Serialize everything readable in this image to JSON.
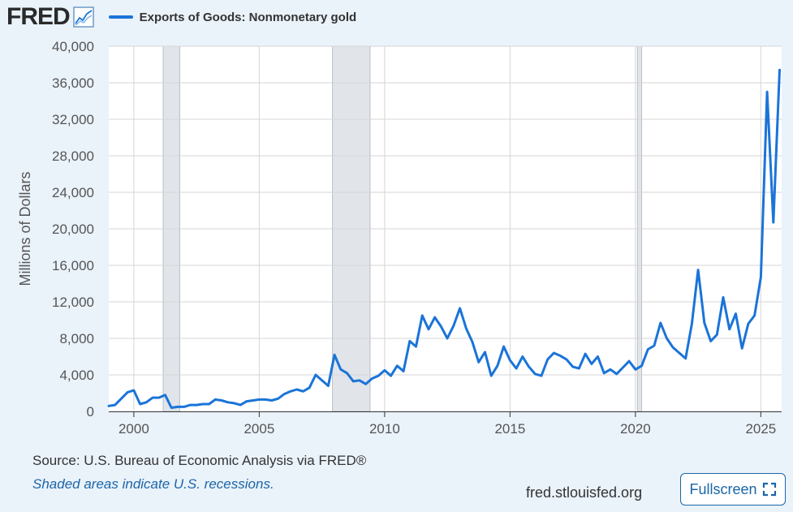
{
  "brand": "FRED",
  "colors": {
    "series": "#1a74d8",
    "recession": "#e1e5ea",
    "grid": "#d5d5d5",
    "axis": "#333333",
    "link": "#1b66a8"
  },
  "footer": {
    "source": "Source: U.S. Bureau of Economic Analysis via FRED®",
    "note": "Shaded areas indicate U.S. recessions.",
    "site": "fred.stlouisfed.org",
    "fullscreen_label": "Fullscreen"
  },
  "chart_data": {
    "type": "line",
    "title": "",
    "ylabel": "Millions of Dollars",
    "xlabel": "",
    "ylim": [
      0,
      40000
    ],
    "xlim": [
      1999.0,
      2025.83
    ],
    "y_ticks": [
      {
        "value": 0,
        "label": "0"
      },
      {
        "value": 4000,
        "label": "4,000"
      },
      {
        "value": 8000,
        "label": "8,000"
      },
      {
        "value": 12000,
        "label": "12,000"
      },
      {
        "value": 16000,
        "label": "16,000"
      },
      {
        "value": 20000,
        "label": "20,000"
      },
      {
        "value": 24000,
        "label": "24,000"
      },
      {
        "value": 28000,
        "label": "28,000"
      },
      {
        "value": 32000,
        "label": "32,000"
      },
      {
        "value": 36000,
        "label": "36,000"
      },
      {
        "value": 40000,
        "label": "40,000"
      }
    ],
    "x_ticks": [
      {
        "value": 2000,
        "label": "2000"
      },
      {
        "value": 2005,
        "label": "2005"
      },
      {
        "value": 2010,
        "label": "2010"
      },
      {
        "value": 2015,
        "label": "2015"
      },
      {
        "value": 2020,
        "label": "2020"
      },
      {
        "value": 2025,
        "label": "2025"
      }
    ],
    "recessions": [
      {
        "start": 2001.17,
        "end": 2001.83
      },
      {
        "start": 2007.92,
        "end": 2009.42
      },
      {
        "start": 2020.08,
        "end": 2020.25
      }
    ],
    "series": [
      {
        "name": "Exports of Goods: Nonmonetary gold",
        "color": "#1a74d8",
        "x": [
          1999.0,
          1999.25,
          1999.5,
          1999.75,
          2000.0,
          2000.25,
          2000.5,
          2000.75,
          2001.0,
          2001.25,
          2001.5,
          2001.75,
          2002.0,
          2002.25,
          2002.5,
          2002.75,
          2003.0,
          2003.25,
          2003.5,
          2003.75,
          2004.0,
          2004.25,
          2004.5,
          2004.75,
          2005.0,
          2005.25,
          2005.5,
          2005.75,
          2006.0,
          2006.25,
          2006.5,
          2006.75,
          2007.0,
          2007.25,
          2007.5,
          2007.75,
          2008.0,
          2008.25,
          2008.5,
          2008.75,
          2009.0,
          2009.25,
          2009.5,
          2009.75,
          2010.0,
          2010.25,
          2010.5,
          2010.75,
          2011.0,
          2011.25,
          2011.5,
          2011.75,
          2012.0,
          2012.25,
          2012.5,
          2012.75,
          2013.0,
          2013.25,
          2013.5,
          2013.75,
          2014.0,
          2014.25,
          2014.5,
          2014.75,
          2015.0,
          2015.25,
          2015.5,
          2015.75,
          2016.0,
          2016.25,
          2016.5,
          2016.75,
          2017.0,
          2017.25,
          2017.5,
          2017.75,
          2018.0,
          2018.25,
          2018.5,
          2018.75,
          2019.0,
          2019.25,
          2019.5,
          2019.75,
          2020.0,
          2020.25,
          2020.5,
          2020.75,
          2021.0,
          2021.25,
          2021.5,
          2021.75,
          2022.0,
          2022.25,
          2022.5,
          2022.75,
          2023.0,
          2023.25,
          2023.5,
          2023.75,
          2024.0,
          2024.25,
          2024.5,
          2024.75,
          2025.0,
          2025.25,
          2025.5,
          2025.75
        ],
        "values": [
          600,
          700,
          1400,
          2100,
          2300,
          800,
          1000,
          1500,
          1500,
          1800,
          400,
          500,
          500,
          700,
          700,
          800,
          800,
          1300,
          1200,
          1000,
          900,
          700,
          1100,
          1200,
          1300,
          1300,
          1200,
          1400,
          1900,
          2200,
          2400,
          2200,
          2600,
          4000,
          3400,
          2800,
          6200,
          4600,
          4200,
          3300,
          3400,
          3000,
          3600,
          3900,
          4500,
          3900,
          5000,
          4400,
          7700,
          7100,
          10500,
          9000,
          10300,
          9300,
          8000,
          9400,
          11300,
          9100,
          7600,
          5400,
          6500,
          3900,
          5000,
          7100,
          5600,
          4700,
          6000,
          4900,
          4100,
          3900,
          5700,
          6400,
          6100,
          5700,
          4900,
          4700,
          6300,
          5200,
          6000,
          4200,
          4600,
          4100,
          4800,
          5500,
          4600,
          5000,
          6800,
          7200,
          9700,
          8000,
          7000,
          6400,
          5800,
          9600,
          15500,
          9700,
          7700,
          8400,
          12500,
          9000,
          10700,
          6900,
          9600,
          10500,
          14700,
          35000,
          20700,
          37400
        ]
      }
    ]
  }
}
